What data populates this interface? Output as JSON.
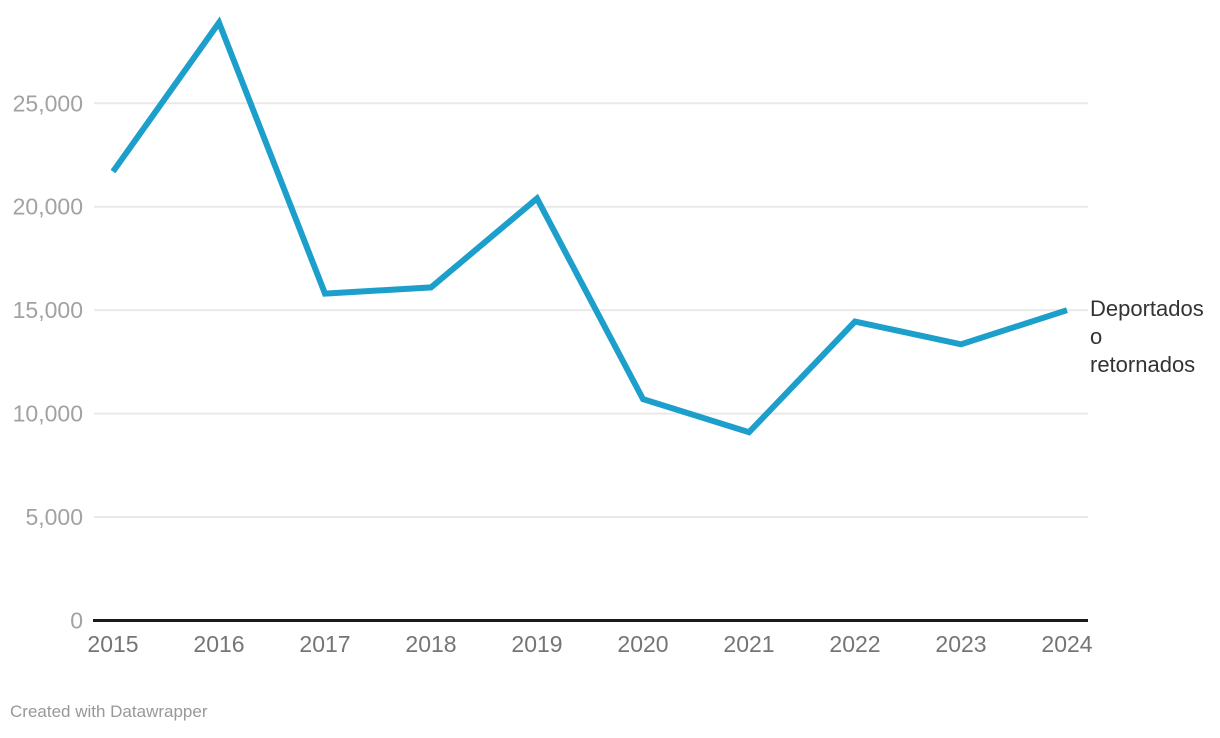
{
  "chart_data": {
    "type": "line",
    "title": "",
    "xlabel": "",
    "ylabel": "",
    "categories": [
      "2015",
      "2016",
      "2017",
      "2018",
      "2019",
      "2020",
      "2021",
      "2022",
      "2023",
      "2024"
    ],
    "series": [
      {
        "name": "Deportados o retornados",
        "label_lines": [
          "Deportados",
          "o",
          "retornados"
        ],
        "values": [
          21700,
          28900,
          15800,
          16100,
          20400,
          10700,
          9100,
          14450,
          13350,
          15000
        ],
        "color": "#1d9fcc"
      }
    ],
    "ylim": [
      0,
      29500
    ],
    "y_ticks": [
      {
        "value": 0,
        "label": "0"
      },
      {
        "value": 5000,
        "label": "5,000"
      },
      {
        "value": 10000,
        "label": "10,000"
      },
      {
        "value": 15000,
        "label": "15,000"
      },
      {
        "value": 20000,
        "label": "20,000"
      },
      {
        "value": 25000,
        "label": "25,000"
      }
    ],
    "grid": "horizontal",
    "legend_position": "direct-label-right"
  },
  "colors": {
    "line": "#1d9fcc",
    "grid": "#e9e9e9",
    "axis": "#1a1a1a",
    "y_tick_label": "#a2a2a2",
    "x_tick_label": "#757575",
    "series_label": "#333333",
    "credit": "#989898",
    "background": "#ffffff"
  },
  "footer": {
    "credit": "Created with Datawrapper"
  }
}
